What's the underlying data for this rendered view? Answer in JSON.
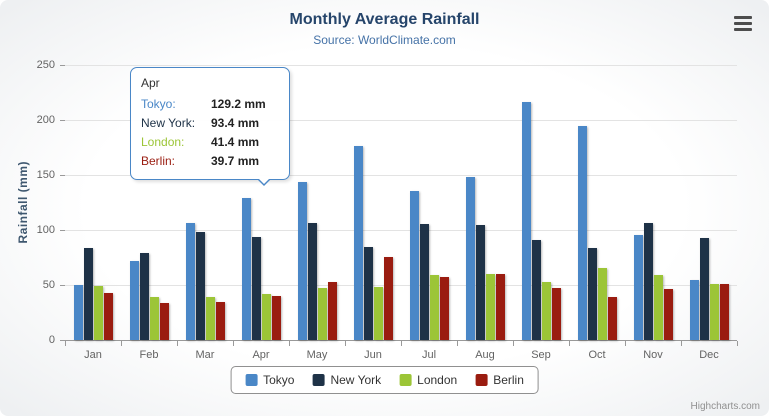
{
  "chart_data": {
    "type": "bar",
    "title": "Monthly Average Rainfall",
    "subtitle": "Source: WorldClimate.com",
    "categories": [
      "Jan",
      "Feb",
      "Mar",
      "Apr",
      "May",
      "Jun",
      "Jul",
      "Aug",
      "Sep",
      "Oct",
      "Nov",
      "Dec"
    ],
    "series": [
      {
        "name": "Tokyo",
        "color": "#4a87c7",
        "values": [
          49.9,
          71.5,
          106.4,
          129.2,
          144.0,
          176.0,
          135.6,
          148.5,
          216.4,
          194.1,
          95.6,
          54.4
        ]
      },
      {
        "name": "New York",
        "color": "#1e3247",
        "values": [
          83.6,
          78.8,
          98.5,
          93.4,
          106.0,
          84.5,
          105.0,
          104.3,
          91.2,
          83.5,
          106.6,
          92.3
        ]
      },
      {
        "name": "London",
        "color": "#9cc537",
        "values": [
          48.9,
          38.8,
          39.3,
          41.4,
          47.0,
          48.3,
          59.0,
          59.6,
          52.4,
          65.2,
          59.3,
          51.2
        ]
      },
      {
        "name": "Berlin",
        "color": "#9a1c10",
        "values": [
          42.4,
          33.2,
          34.5,
          39.7,
          52.6,
          75.5,
          57.4,
          60.4,
          47.6,
          39.1,
          46.8,
          51.1
        ]
      }
    ],
    "xlabel": "",
    "ylabel": "Rainfall (mm)",
    "ylim": [
      0,
      250
    ],
    "yticks": [
      0,
      50,
      100,
      150,
      200,
      250
    ],
    "grid": true,
    "legend_position": "bottom"
  },
  "tooltip": {
    "category": "Apr",
    "rows": [
      {
        "label": "Tokyo:",
        "value": "129.2 mm",
        "color": "#4a87c7"
      },
      {
        "label": "New York:",
        "value": "93.4 mm",
        "color": "#1e3247"
      },
      {
        "label": "London:",
        "value": "41.4 mm",
        "color": "#9cc537"
      },
      {
        "label": "Berlin:",
        "value": "39.7 mm",
        "color": "#9a1c10"
      }
    ]
  },
  "credits": "Highcharts.com"
}
